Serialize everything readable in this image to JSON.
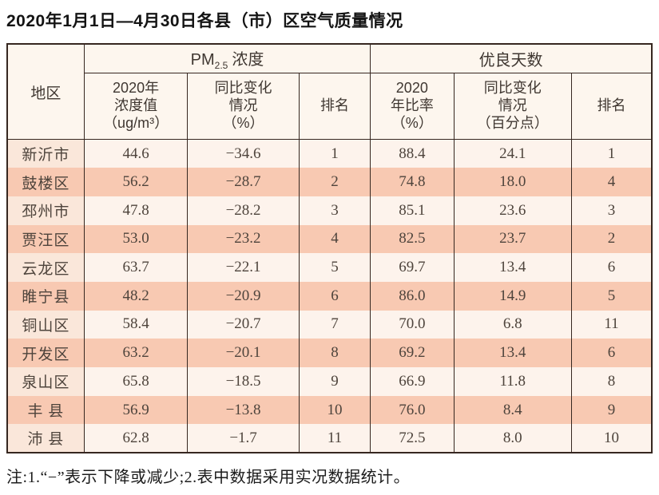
{
  "page": {
    "title": "2020年1月1日—4月30日各县（市）区空气质量情况",
    "note": "注:1.“−”表示下降或减少;2.表中数据采用实况数据统计。"
  },
  "colors": {
    "row_odd_bg": "#f8c9b2",
    "row_even_bg": "#fdf3ec",
    "region_even_bg": "#fae7da",
    "header_bg": "#fdf6ee",
    "border": "#362720"
  },
  "headers": {
    "region": "地区",
    "pm25_group": {
      "prefix": "PM",
      "sub": "2.5",
      "suffix": "浓度"
    },
    "days_group": "优良天数",
    "pm25_value": {
      "l1": "2020年",
      "l2": "浓度值",
      "l3": "（ug/m³）"
    },
    "pm25_change": {
      "l1": "同比变化",
      "l2": "情况",
      "l3": "（%）"
    },
    "pm25_rank": "排名",
    "days_ratio": {
      "l1": "2020",
      "l2": "年比率",
      "l3": "（%）"
    },
    "days_change": {
      "l1": "同比变化",
      "l2": "情况",
      "l3": "（百分点）"
    },
    "days_rank": "排名"
  },
  "chart_data": {
    "type": "table",
    "title": "2020年1月1日—4月30日各县（市）区空气质量情况",
    "column_groups": [
      "PM2.5 浓度",
      "优良天数"
    ],
    "columns": [
      "地区",
      "2020年浓度值（ug/m³）",
      "同比变化情况（%）",
      "排名",
      "2020年比率（%）",
      "同比变化情况（百分点）",
      "排名"
    ],
    "rows": [
      {
        "region": "新沂市",
        "pm25_value": "44.6",
        "pm25_change": "−34.6",
        "pm25_rank": "1",
        "days_ratio": "88.4",
        "days_change": "24.1",
        "days_rank": "1"
      },
      {
        "region": "鼓楼区",
        "pm25_value": "56.2",
        "pm25_change": "−28.7",
        "pm25_rank": "2",
        "days_ratio": "74.8",
        "days_change": "18.0",
        "days_rank": "4"
      },
      {
        "region": "邳州市",
        "pm25_value": "47.8",
        "pm25_change": "−28.2",
        "pm25_rank": "3",
        "days_ratio": "85.1",
        "days_change": "23.6",
        "days_rank": "3"
      },
      {
        "region": "贾汪区",
        "pm25_value": "53.0",
        "pm25_change": "−23.2",
        "pm25_rank": "4",
        "days_ratio": "82.5",
        "days_change": "23.7",
        "days_rank": "2"
      },
      {
        "region": "云龙区",
        "pm25_value": "63.7",
        "pm25_change": "−22.1",
        "pm25_rank": "5",
        "days_ratio": "69.7",
        "days_change": "13.4",
        "days_rank": "6"
      },
      {
        "region": "睢宁县",
        "pm25_value": "48.2",
        "pm25_change": "−20.9",
        "pm25_rank": "6",
        "days_ratio": "86.0",
        "days_change": "14.9",
        "days_rank": "5"
      },
      {
        "region": "铜山区",
        "pm25_value": "58.4",
        "pm25_change": "−20.7",
        "pm25_rank": "7",
        "days_ratio": "70.0",
        "days_change": "6.8",
        "days_rank": "11"
      },
      {
        "region": "开发区",
        "pm25_value": "63.2",
        "pm25_change": "−20.1",
        "pm25_rank": "8",
        "days_ratio": "69.2",
        "days_change": "13.4",
        "days_rank": "6"
      },
      {
        "region": "泉山区",
        "pm25_value": "65.8",
        "pm25_change": "−18.5",
        "pm25_rank": "9",
        "days_ratio": "66.9",
        "days_change": "11.8",
        "days_rank": "8"
      },
      {
        "region": "丰 县",
        "pm25_value": "56.9",
        "pm25_change": "−13.8",
        "pm25_rank": "10",
        "days_ratio": "76.0",
        "days_change": "8.4",
        "days_rank": "9"
      },
      {
        "region": "沛 县",
        "pm25_value": "62.8",
        "pm25_change": "−1.7",
        "pm25_rank": "11",
        "days_ratio": "72.5",
        "days_change": "8.0",
        "days_rank": "10"
      }
    ]
  }
}
